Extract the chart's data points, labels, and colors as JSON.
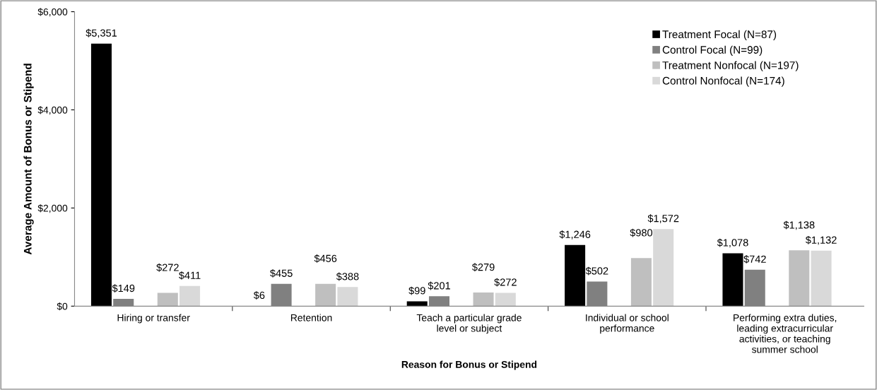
{
  "chart_data": {
    "type": "bar",
    "xlabel": "Reason for Bonus or Stipend",
    "ylabel": "Average Amount of Bonus or Stipend",
    "categories": [
      "Hiring or transfer",
      "Retention",
      "Teach a particular grade\nlevel or subject",
      "Individual or school\nperformance",
      "Performing extra duties,\nleading extracurricular\nactivities, or teaching\nsummer school"
    ],
    "series": [
      {
        "name": "Treatment Focal (N=87)",
        "color": "#000000",
        "values": [
          5351,
          6,
          99,
          1246,
          1078
        ],
        "value_labels": [
          "$5,351",
          "$6",
          "$99",
          "$1,246",
          "$1,078"
        ]
      },
      {
        "name": "Control Focal (N=99)",
        "color": "#808080",
        "values": [
          149,
          455,
          201,
          502,
          742
        ],
        "value_labels": [
          "$149",
          "$455",
          "$201",
          "$502",
          "$742"
        ]
      },
      {
        "name": "Treatment Nonfocal (N=197)",
        "color": "#bfbfbf",
        "values": [
          272,
          456,
          279,
          980,
          1138
        ],
        "value_labels": [
          "$272",
          "$456",
          "$279",
          "$980",
          "$1,138"
        ]
      },
      {
        "name": "Control Nonfocal (N=174)",
        "color": "#d9d9d9",
        "values": [
          411,
          388,
          272,
          1572,
          1132
        ],
        "value_labels": [
          "$411",
          "$388",
          "$272",
          "$1,572",
          "$1,132"
        ]
      }
    ],
    "ylim": [
      0,
      6000
    ],
    "yticks": [
      {
        "value": 0,
        "label": "$0"
      },
      {
        "value": 2000,
        "label": "$2,000"
      },
      {
        "value": 4000,
        "label": "$4,000"
      },
      {
        "value": 6000,
        "label": "$6,000"
      }
    ],
    "grid": false,
    "legend": "top right"
  }
}
